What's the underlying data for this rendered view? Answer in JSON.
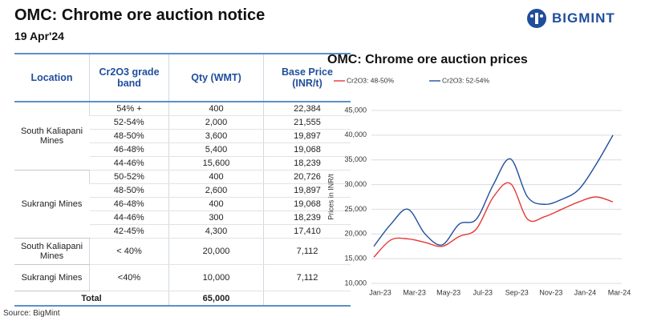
{
  "header": {
    "title": "OMC: Chrome ore auction notice",
    "date": "19 Apr'24",
    "logo": "BIGMINT"
  },
  "table": {
    "columns": [
      "Location",
      "Cr2O3 grade band",
      "Qty (WMT)",
      "Base Price (INR/t)"
    ],
    "groups": [
      {
        "location": "South Kaliapani Mines",
        "rows": [
          [
            "54% +",
            "400",
            "22,384"
          ],
          [
            "52-54%",
            "2,000",
            "21,555"
          ],
          [
            "48-50%",
            "3,600",
            "19,897"
          ],
          [
            "46-48%",
            "5,400",
            "19,068"
          ],
          [
            "44-46%",
            "15,600",
            "18,239"
          ]
        ]
      },
      {
        "location": "Sukrangi Mines",
        "rows": [
          [
            "50-52%",
            "400",
            "20,726"
          ],
          [
            "48-50%",
            "2,600",
            "19,897"
          ],
          [
            "46-48%",
            "400",
            "19,068"
          ],
          [
            "44-46%",
            "300",
            "18,239"
          ],
          [
            "42-45%",
            "4,300",
            "17,410"
          ]
        ]
      },
      {
        "location": "South Kaliapani Mines",
        "rows": [
          [
            "< 40%",
            "20,000",
            "7,112"
          ]
        ]
      },
      {
        "location": "Sukrangi Mines",
        "rows": [
          [
            "<40%",
            "10,000",
            "7,112"
          ]
        ]
      }
    ],
    "total": {
      "label": "Total",
      "qty": "65,000"
    }
  },
  "source": "Source: BigMint",
  "chart_data": {
    "type": "line",
    "title": "OMC: Chrome ore auction prices",
    "y_label": "Prices in INR/t",
    "categories": [
      "Jan-23",
      null,
      "Mar-23",
      null,
      "May-23",
      null,
      "Jul-23",
      null,
      "Sep-23",
      null,
      "Nov-23",
      null,
      "Jan-24",
      null,
      "Mar-24"
    ],
    "series": [
      {
        "name": "Cr2O3: 48-50%",
        "color": "#e53935",
        "values": [
          15300,
          18800,
          19000,
          18300,
          17500,
          19500,
          21000,
          27500,
          30200,
          23000,
          23500,
          25000,
          26500,
          27500,
          26500
        ]
      },
      {
        "name": "Cr2O3: 52-54%",
        "color": "#1f4e9c",
        "values": [
          17500,
          22000,
          25000,
          20000,
          17800,
          22000,
          23000,
          30000,
          35200,
          27500,
          26000,
          27000,
          29000,
          34000,
          40000
        ]
      }
    ],
    "ylim": [
      10000,
      45000
    ],
    "yticks": [
      {
        "value": 10000,
        "label": "10,000"
      },
      {
        "value": 15000,
        "label": "15,000"
      },
      {
        "value": 20000,
        "label": "20,000"
      },
      {
        "value": 25000,
        "label": "25,000"
      },
      {
        "value": 30000,
        "label": "30,000"
      },
      {
        "value": 35000,
        "label": "35,000"
      },
      {
        "value": 40000,
        "label": "40,000"
      },
      {
        "value": 45000,
        "label": "45,000"
      }
    ],
    "grid": true,
    "legend": "top"
  }
}
